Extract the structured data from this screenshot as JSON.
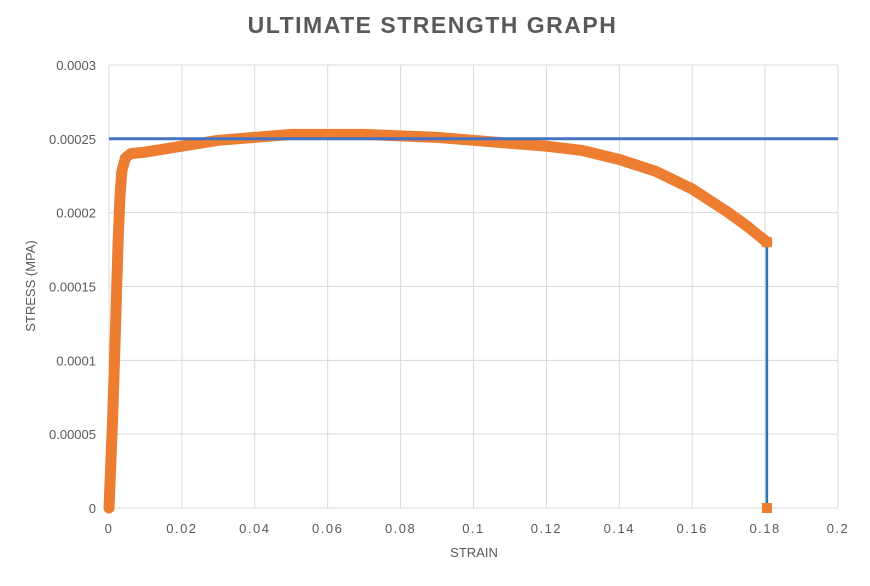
{
  "chart_data": {
    "type": "scatter",
    "title": "ULTIMATE STRENGTH GRAPH",
    "xlabel": "STRAIN",
    "ylabel": "STRESS (MPA)",
    "xlim": [
      0,
      0.2
    ],
    "ylim": [
      0,
      0.0003
    ],
    "x_ticks": [
      "0",
      "0.02",
      "0.04",
      "0.06",
      "0.08",
      "0.1",
      "0.12",
      "0.14",
      "0.16",
      "0.18",
      "0.2"
    ],
    "y_ticks": [
      "0",
      "0.00005",
      "0.0001",
      "0.00015",
      "0.0002",
      "0.00025",
      "0.0003"
    ],
    "grid": true,
    "legend": "none",
    "series": [
      {
        "kind": "stress-strain curve",
        "color": "#ED7D31",
        "points": [
          [
            0.0,
            0.0
          ],
          [
            0.0005,
            3e-05
          ],
          [
            0.001,
            6e-05
          ],
          [
            0.0015,
            0.0001
          ],
          [
            0.002,
            0.00014
          ],
          [
            0.0025,
            0.00018
          ],
          [
            0.003,
            0.00021
          ],
          [
            0.0035,
            0.000228
          ],
          [
            0.0045,
            0.000237
          ],
          [
            0.006,
            0.00024
          ],
          [
            0.01,
            0.000241
          ],
          [
            0.02,
            0.000245
          ],
          [
            0.03,
            0.000249
          ],
          [
            0.04,
            0.000251
          ],
          [
            0.05,
            0.000253
          ],
          [
            0.06,
            0.000253
          ],
          [
            0.07,
            0.000253
          ],
          [
            0.08,
            0.000252
          ],
          [
            0.09,
            0.000251
          ],
          [
            0.1,
            0.000249
          ],
          [
            0.11,
            0.000247
          ],
          [
            0.12,
            0.000245
          ],
          [
            0.13,
            0.000242
          ],
          [
            0.14,
            0.000236
          ],
          [
            0.15,
            0.000228
          ],
          [
            0.16,
            0.000216
          ],
          [
            0.17,
            0.0002
          ],
          [
            0.175,
            0.000191
          ],
          [
            0.1805,
            0.00018
          ]
        ]
      },
      {
        "kind": "ultimate strength line",
        "color": "#4472C4",
        "points": [
          [
            0,
            0.00025
          ],
          [
            0.2,
            0.00025
          ]
        ]
      },
      {
        "kind": "fracture line",
        "color": "#2E75B6",
        "points": [
          [
            0.1805,
            0.00018
          ],
          [
            0.1805,
            0.0
          ]
        ]
      },
      {
        "kind": "fracture points",
        "color": "#ED7D31",
        "points": [
          [
            0.1805,
            0.00018
          ],
          [
            0.1805,
            0.0
          ]
        ]
      }
    ]
  }
}
